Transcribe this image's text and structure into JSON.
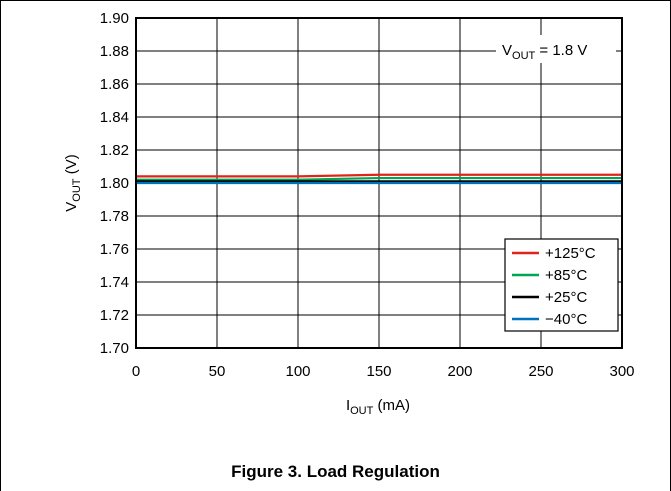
{
  "chart_data": {
    "type": "line",
    "xlabel": {
      "main": "I",
      "sub": "OUT",
      "unit": " (mA)"
    },
    "ylabel": {
      "main": "V",
      "sub": "OUT",
      "unit": " (V)"
    },
    "xlim": [
      0,
      300
    ],
    "ylim": [
      1.7,
      1.9
    ],
    "xticks": [
      0,
      50,
      100,
      150,
      200,
      250,
      300
    ],
    "yticks": [
      1.7,
      1.72,
      1.74,
      1.76,
      1.78,
      1.8,
      1.82,
      1.84,
      1.86,
      1.88,
      1.9
    ],
    "xtick_labels": [
      "0",
      "50",
      "100",
      "150",
      "200",
      "250",
      "300"
    ],
    "ytick_labels": [
      "1.70",
      "1.72",
      "1.74",
      "1.76",
      "1.78",
      "1.80",
      "1.82",
      "1.84",
      "1.86",
      "1.88",
      "1.90"
    ],
    "grid": true,
    "legend_position": "bottom-right",
    "annotation": {
      "main": "V",
      "sub": "OUT",
      "rest": " = 1.8 V"
    },
    "series": [
      {
        "name": "+125°C",
        "color": "#e2231a",
        "x": [
          0,
          50,
          100,
          150,
          200,
          250,
          300
        ],
        "y": [
          1.804,
          1.804,
          1.804,
          1.805,
          1.805,
          1.805,
          1.805
        ]
      },
      {
        "name": "+85°C",
        "color": "#00a651",
        "x": [
          0,
          50,
          100,
          150,
          200,
          250,
          300
        ],
        "y": [
          1.802,
          1.802,
          1.802,
          1.803,
          1.803,
          1.803,
          1.803
        ]
      },
      {
        "name": "+25°C",
        "color": "#000000",
        "x": [
          0,
          50,
          100,
          150,
          200,
          250,
          300
        ],
        "y": [
          1.801,
          1.801,
          1.801,
          1.801,
          1.801,
          1.801,
          1.801
        ]
      },
      {
        "name": "−40°C",
        "color": "#0072bc",
        "x": [
          0,
          50,
          100,
          150,
          200,
          250,
          300
        ],
        "y": [
          1.8,
          1.8,
          1.8,
          1.8,
          1.8,
          1.8,
          1.8
        ]
      }
    ]
  },
  "caption": "Figure 3. Load Regulation"
}
